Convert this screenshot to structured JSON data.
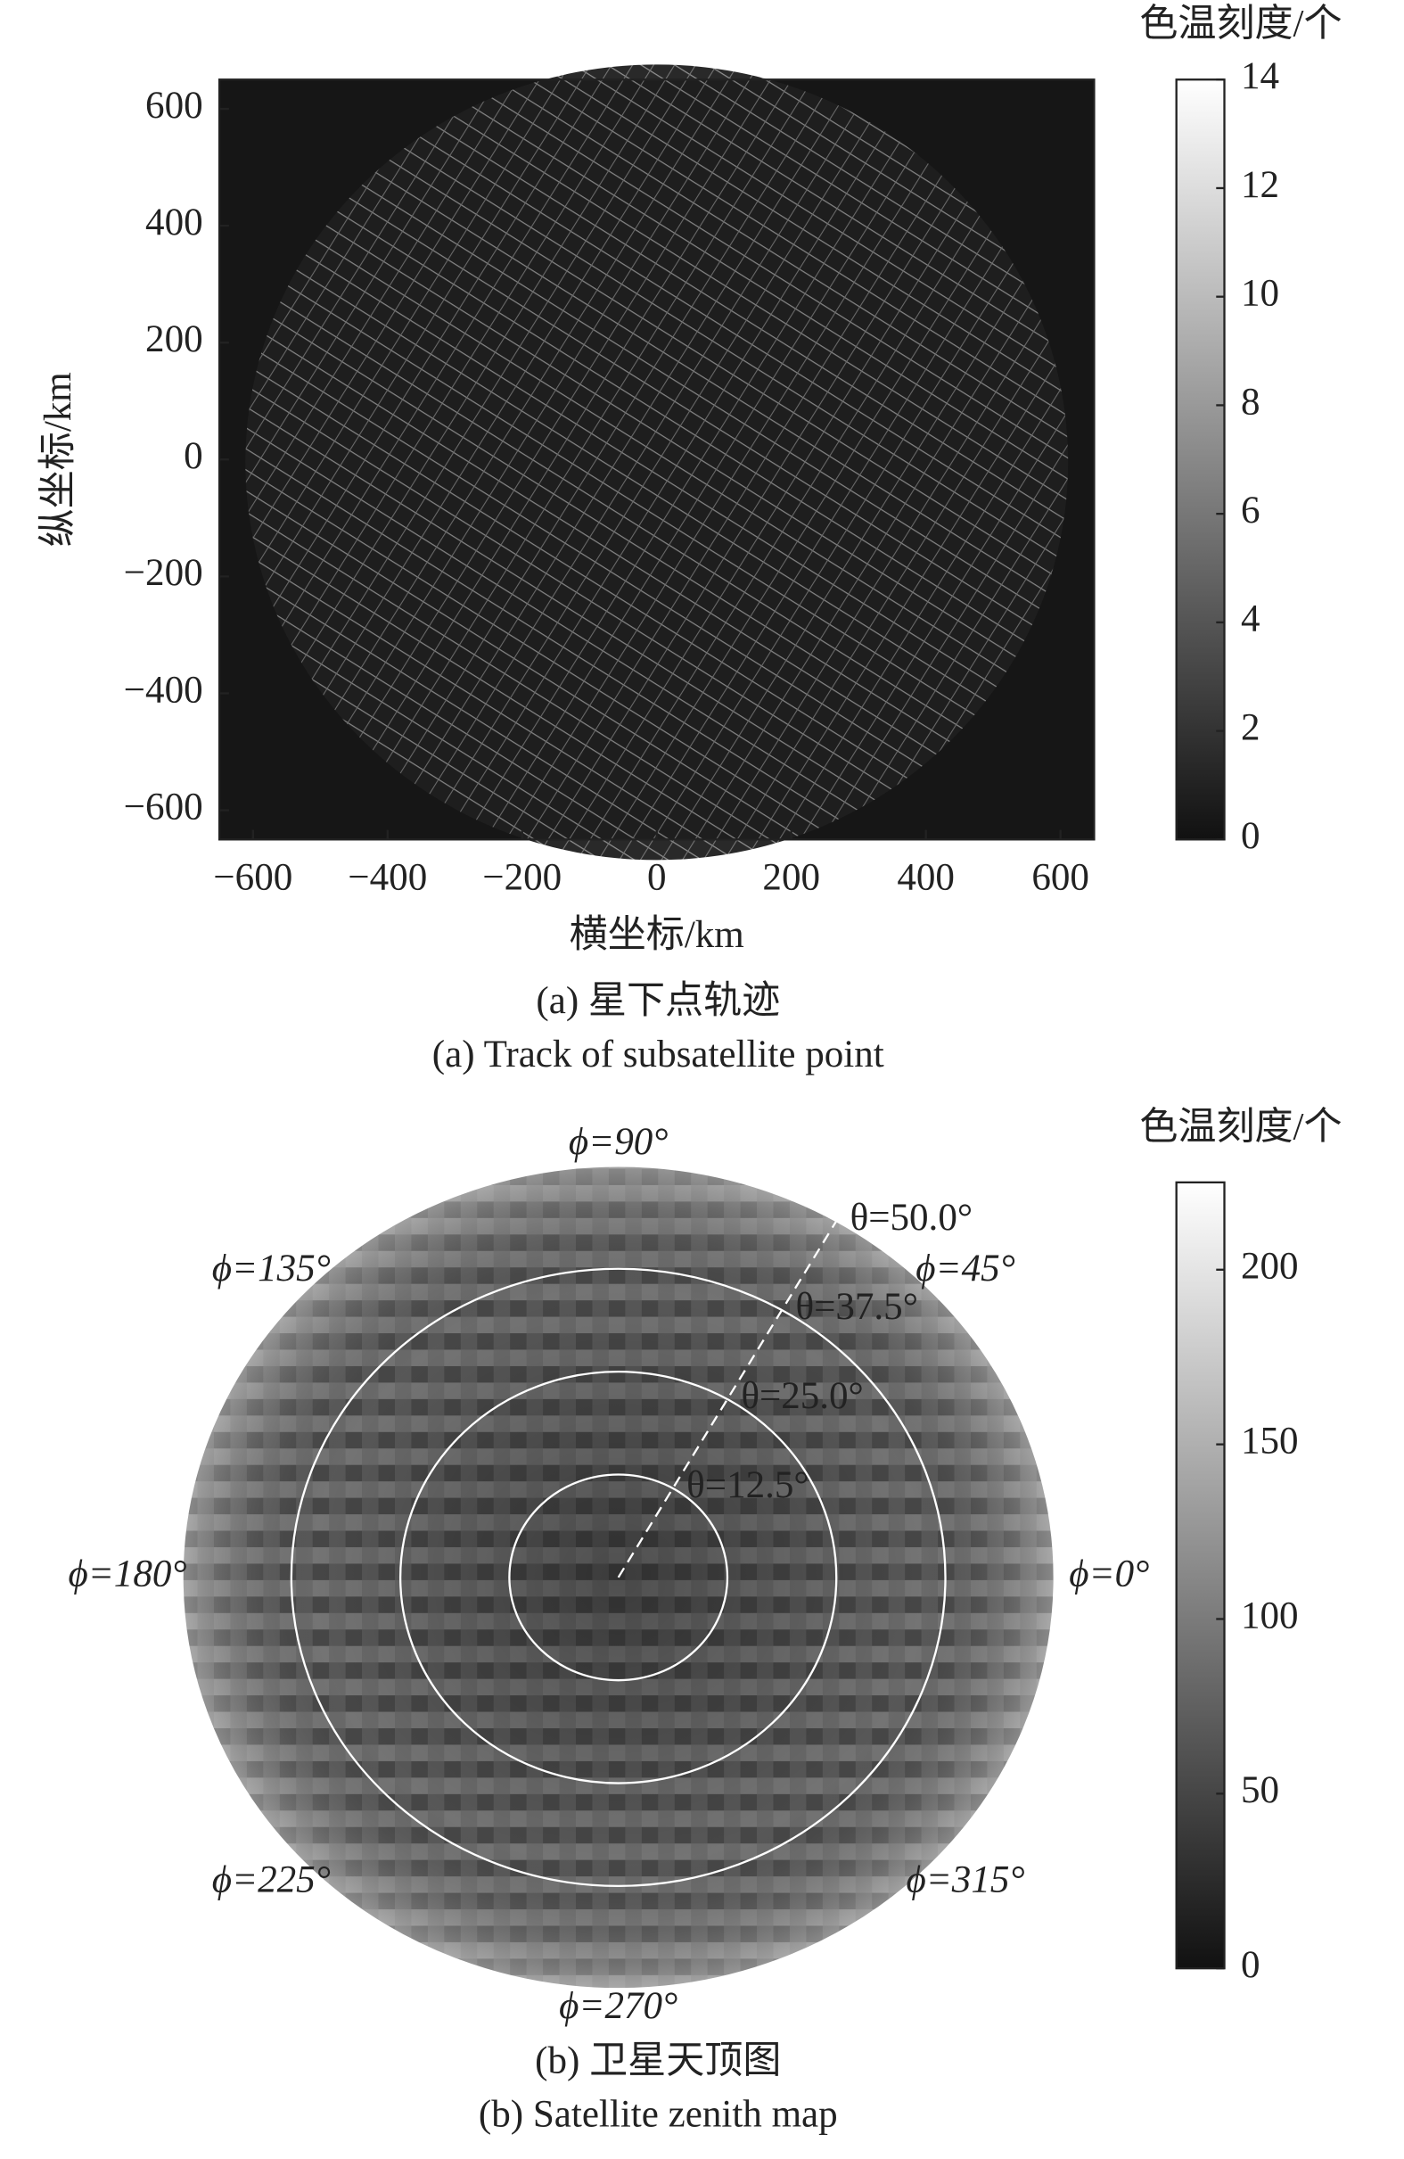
{
  "chart_data": [
    {
      "type": "heatmap",
      "xlabel": "横坐标/km",
      "ylabel": "纵坐标/km",
      "xlim": [
        -650,
        650
      ],
      "ylim": [
        -650,
        650
      ],
      "xticks": [
        {
          "value": -600,
          "label": "−600"
        },
        {
          "value": -400,
          "label": "−400"
        },
        {
          "value": -200,
          "label": "−200"
        },
        0,
        200,
        400,
        600
      ],
      "yticks": [
        {
          "value": -600,
          "label": "−600"
        },
        {
          "value": -400,
          "label": "−400"
        },
        {
          "value": -200,
          "label": "−200"
        },
        0,
        200,
        400,
        600
      ],
      "colorbar": {
        "title": "色温刻度/个",
        "lim": [
          0,
          14
        ],
        "ticks": [
          0,
          2,
          4,
          6,
          8,
          10,
          12,
          14
        ]
      },
      "caption": [
        "(a) 星下点轨迹",
        "(a) Track of subsatellite point"
      ]
    },
    {
      "type": "polar",
      "rlim": [
        0,
        50
      ],
      "rticks": [
        {
          "value": 12.5,
          "label": "θ=12.5°"
        },
        {
          "value": 25,
          "label": "θ=25.0°"
        },
        {
          "value": 37.5,
          "label": "θ=37.5°"
        },
        {
          "value": 50,
          "label": "θ=50.0°"
        }
      ],
      "thetaticks": [
        {
          "value": 0,
          "label": "ϕ=0°"
        },
        {
          "value": 45,
          "label": "ϕ=45°"
        },
        {
          "value": 90,
          "label": "ϕ=90°"
        },
        {
          "value": 135,
          "label": "ϕ=135°"
        },
        {
          "value": 180,
          "label": "ϕ=180°"
        },
        {
          "value": 225,
          "label": "ϕ=225°"
        },
        {
          "value": 270,
          "label": "ϕ=270°"
        },
        {
          "value": 315,
          "label": "ϕ=315°"
        }
      ],
      "colorbar": {
        "title": "色温刻度/个",
        "lim": [
          0,
          225
        ],
        "ticks": [
          0,
          50,
          100,
          150,
          200
        ]
      },
      "caption": [
        "(b) 卫星天顶图",
        "(b) Satellite zenith map"
      ]
    }
  ]
}
